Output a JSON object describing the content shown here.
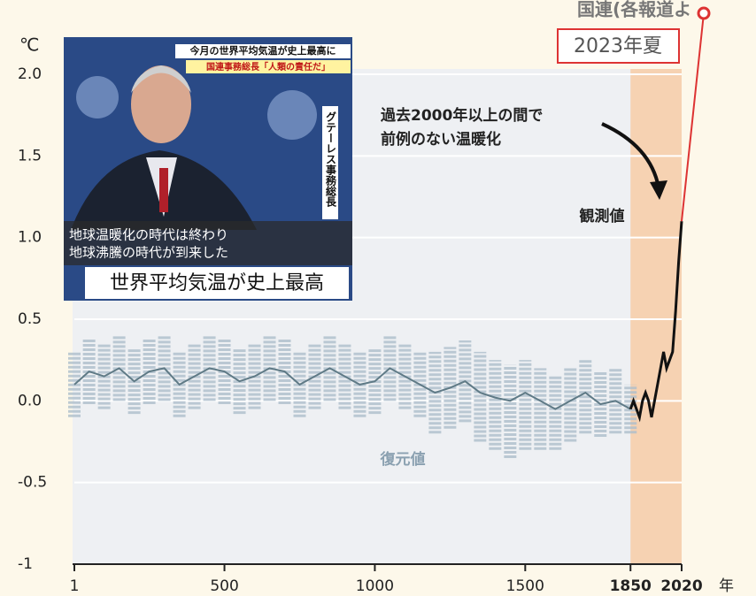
{
  "chart_data": {
    "type": "line",
    "unit_label": "℃",
    "x_unit_label": "年",
    "annotation": [
      "過去2000年以上の間で",
      "前例のない温暖化"
    ],
    "highlight_label": "2023年夏",
    "source_label": "国連(各報道よ",
    "xlim": [
      1,
      2020
    ],
    "xticks": [
      1,
      500,
      1000,
      1500,
      1850,
      2020
    ],
    "ylim": [
      -1,
      2
    ],
    "yticks": [
      {
        "value": 2,
        "label": "2.0"
      },
      1.5,
      {
        "value": 1,
        "label": "1.0"
      },
      0.5,
      {
        "value": 0,
        "label": "0.0"
      },
      -0.5,
      -1
    ],
    "shaded_xrange": [
      1850,
      2020
    ],
    "series": [
      {
        "name": "復元値",
        "color": "#5f7a86",
        "x": [
          1,
          50,
          100,
          150,
          200,
          250,
          300,
          350,
          400,
          450,
          500,
          550,
          600,
          650,
          700,
          750,
          800,
          850,
          900,
          950,
          1000,
          1050,
          1100,
          1150,
          1200,
          1250,
          1300,
          1350,
          1400,
          1450,
          1500,
          1550,
          1600,
          1650,
          1700,
          1750,
          1800,
          1850
        ],
        "values": [
          0.1,
          0.18,
          0.15,
          0.2,
          0.12,
          0.18,
          0.2,
          0.1,
          0.15,
          0.2,
          0.18,
          0.12,
          0.15,
          0.2,
          0.18,
          0.1,
          0.15,
          0.2,
          0.15,
          0.1,
          0.12,
          0.2,
          0.15,
          0.1,
          0.05,
          0.08,
          0.12,
          0.05,
          0.02,
          0.0,
          0.05,
          0.0,
          -0.05,
          0.0,
          0.05,
          -0.02,
          0.0,
          -0.05
        ],
        "lower": [
          -0.1,
          -0.02,
          -0.05,
          0,
          -0.08,
          -0.02,
          0,
          -0.1,
          -0.05,
          0,
          -0.02,
          -0.08,
          -0.05,
          0,
          -0.02,
          -0.1,
          -0.05,
          0,
          -0.05,
          -0.1,
          -0.08,
          0,
          -0.05,
          -0.1,
          -0.2,
          -0.17,
          -0.13,
          -0.25,
          -0.3,
          -0.35,
          -0.3,
          -0.3,
          -0.3,
          -0.25,
          -0.2,
          -0.22,
          -0.2,
          -0.2
        ],
        "upper": [
          0.3,
          0.38,
          0.35,
          0.4,
          0.32,
          0.38,
          0.4,
          0.3,
          0.35,
          0.4,
          0.38,
          0.32,
          0.35,
          0.4,
          0.38,
          0.3,
          0.35,
          0.4,
          0.35,
          0.3,
          0.32,
          0.4,
          0.35,
          0.3,
          0.3,
          0.33,
          0.37,
          0.3,
          0.25,
          0.22,
          0.25,
          0.2,
          0.15,
          0.2,
          0.25,
          0.18,
          0.2,
          0.1
        ]
      },
      {
        "name": "観測値",
        "color": "#111111",
        "x": [
          1850,
          1860,
          1870,
          1880,
          1890,
          1900,
          1910,
          1920,
          1930,
          1940,
          1950,
          1960,
          1970,
          1980,
          1990,
          2000,
          2010,
          2020
        ],
        "values": [
          -0.05,
          0.0,
          -0.05,
          -0.1,
          0.0,
          0.05,
          0.0,
          -0.1,
          0.0,
          0.1,
          0.2,
          0.3,
          0.2,
          0.25,
          0.3,
          0.55,
          0.85,
          1.1
        ]
      }
    ]
  },
  "news_image": {
    "headline": "今月の世界平均気温が史上最高に",
    "subheadline": "国連事務総長「人類の責任だ」",
    "speaker": "グテーレス事務総長",
    "quote": [
      "地球温暖化の時代は終わり",
      "地球沸騰の時代が到来した"
    ],
    "caption": "世界平均気温が史上最高"
  }
}
